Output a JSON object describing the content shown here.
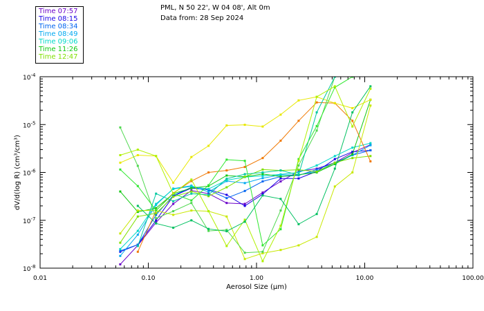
{
  "header": {
    "line1": "PML, N 50 22', W 04 08', Alt 0m",
    "line2": "Data from: 28 Sep 2024"
  },
  "legend": [
    {
      "label": "Time 07:57",
      "color": "#6a00c8"
    },
    {
      "label": "Time 08:15",
      "color": "#1a00e6"
    },
    {
      "label": "Time 08:34",
      "color": "#0064f0"
    },
    {
      "label": "Time 08:49",
      "color": "#00a8f0"
    },
    {
      "label": "Time 09:06",
      "color": "#00d8c8"
    },
    {
      "label": "Time 11:26",
      "color": "#10c810"
    },
    {
      "label": "Time 12:47",
      "color": "#80e000"
    }
  ],
  "chart_data": {
    "type": "line",
    "xscale": "log",
    "yscale": "log",
    "xlim": [
      0.01,
      100
    ],
    "ylim": [
      1e-08,
      0.0001
    ],
    "xlabel": "Aerosol Size (µm)",
    "ylabel": "dV/d(log R) (cm³/cm³)",
    "xticks": [
      {
        "value": 0.01,
        "label": "0.01"
      },
      {
        "value": 0.1,
        "label": "0.10"
      },
      {
        "value": 1,
        "label": "1.00"
      },
      {
        "value": 10,
        "label": "10.00"
      },
      {
        "value": 100,
        "label": "100.00"
      }
    ],
    "yticks": [
      {
        "value": 1e-08,
        "base": "10",
        "exp": "-8"
      },
      {
        "value": 1e-07,
        "base": "10",
        "exp": "-7"
      },
      {
        "value": 1e-06,
        "base": "10",
        "exp": "-6"
      },
      {
        "value": 1e-05,
        "base": "10",
        "exp": "-5"
      },
      {
        "value": 0.0001,
        "base": "10",
        "exp": "-4"
      }
    ],
    "x": [
      0.055,
      0.08,
      0.118,
      0.17,
      0.25,
      0.36,
      0.53,
      0.78,
      1.14,
      1.67,
      2.45,
      3.6,
      5.3,
      7.7,
      11.3
    ],
    "series": [
      {
        "name": "Time 07:57",
        "color": "#6a00c8",
        "values": [
          1.2e-08,
          3e-08,
          9e-08,
          2.2e-07,
          4.2e-07,
          3.6e-07,
          2.3e-07,
          2.2e-07,
          3.8e-07,
          6.5e-07,
          1.05e-06,
          1.2e-06,
          1.6e-06,
          2.6e-06,
          3.8e-06
        ]
      },
      {
        "name": "Time 08:15",
        "color": "#1a00e6",
        "values": [
          2.2e-08,
          3.1e-08,
          1e-07,
          3.2e-07,
          4.7e-07,
          4.4e-07,
          3.4e-07,
          2e-07,
          3.5e-07,
          7.5e-07,
          7.5e-07,
          1.05e-06,
          1.9e-06,
          2.7e-06,
          2.9e-06
        ]
      },
      {
        "name": "Time 08:34",
        "color": "#0064f0",
        "values": [
          2.3e-08,
          3.1e-08,
          1.3e-07,
          3.3e-07,
          4.9e-07,
          4.3e-07,
          2.9e-07,
          4.1e-07,
          6.5e-07,
          8.2e-07,
          8.7e-07,
          1.15e-06,
          1.6e-06,
          2.3e-06,
          2.9e-06
        ]
      },
      {
        "name": "Time 08:49",
        "color": "#00a8f0",
        "values": [
          1.8e-08,
          5e-08,
          2.1e-07,
          4.6e-07,
          5.3e-07,
          3.9e-07,
          6.6e-07,
          6e-07,
          7.6e-07,
          8.9e-07,
          8.8e-07,
          1.06e-06,
          1.5e-06,
          2.3e-06,
          3.7e-06
        ]
      },
      {
        "name": "Time 09:06",
        "color": "#00d8c8",
        "values": [
          2.5e-08,
          6e-08,
          2.2e-07,
          4.5e-07,
          5.1e-07,
          4.5e-07,
          6.9e-07,
          8e-07,
          8.5e-07,
          9.1e-07,
          1e-06,
          1.4e-06,
          2.2e-06,
          3.3e-06,
          4.1e-06
        ]
      },
      {
        "name": "Time 11:26",
        "color": "#10c810",
        "values": [
          4e-07,
          1.5e-07,
          1.8e-07,
          3.6e-07,
          4.7e-07,
          5.2e-07,
          8.6e-07,
          8.1e-07,
          9.3e-07,
          8.2e-07,
          9e-07,
          1e-06,
          1.5e-06,
          2.4e-06,
          3.3e-05
        ]
      },
      {
        "name": "Time 12:47",
        "color": "#80e000",
        "values": [
          3.4e-08,
          1.2e-07,
          1.4e-07,
          3.1e-07,
          4e-07,
          3.2e-07,
          4.9e-07,
          8.1e-07,
          1.15e-06,
          1.1e-06,
          1.14e-06,
          1.04e-06,
          1.6e-06,
          2e-06,
          2.2e-06
        ]
      },
      {
        "name": "",
        "color": "#f07800",
        "values": [
          null,
          2.2e-08,
          1.6e-07,
          3.7e-07,
          6.6e-07,
          1e-06,
          1.1e-06,
          1.3e-06,
          2e-06,
          4.6e-06,
          1.2e-05,
          2.9e-05,
          2.8e-05,
          1.2e-05,
          1.7e-06
        ]
      },
      {
        "name": "",
        "color": "#e8e800",
        "values": [
          1.6e-06,
          2.3e-06,
          2.2e-06,
          6.1e-07,
          2.1e-06,
          3.6e-06,
          9.6e-06,
          9.9e-06,
          9.1e-06,
          1.61e-05,
          3.2e-05,
          3.8e-05,
          2.8e-05,
          2.2e-05,
          3.3e-05
        ]
      },
      {
        "name": "",
        "color": "#c8e800",
        "values": [
          5.3e-08,
          1.6e-07,
          1.6e-07,
          1.3e-07,
          1.6e-07,
          1.55e-07,
          1.2e-07,
          1.55e-08,
          2.05e-08,
          2.4e-08,
          3e-08,
          4.5e-08,
          5.1e-07,
          1e-06,
          2.5e-05
        ]
      },
      {
        "name": "",
        "color": "#50d850",
        "values": [
          8.7e-06,
          1.37e-06,
          1.1e-07,
          1.55e-07,
          2.3e-07,
          6e-08,
          6.3e-08,
          2.1e-08,
          2.2e-08,
          1.6e-07,
          1.4e-06,
          7.5e-06,
          0.0001,
          0.0001,
          null
        ]
      },
      {
        "name": "",
        "color": "#00c8a0",
        "values": [
          null,
          2.9e-08,
          3.6e-07,
          2.5e-07,
          3.6e-07,
          3.4e-07,
          7.4e-07,
          9.2e-07,
          1e-06,
          1.1e-06,
          8.9e-07,
          1.8e-05,
          0.0001,
          null,
          null
        ]
      },
      {
        "name": "",
        "color": "#30e830",
        "values": [
          1.15e-06,
          5.2e-07,
          1.6e-07,
          3.6e-07,
          2.6e-07,
          5.4e-07,
          1.85e-06,
          1.75e-06,
          3e-08,
          6.5e-08,
          1.9e-06,
          9.3e-06,
          6e-05,
          0.0001,
          null
        ]
      },
      {
        "name": "",
        "color": "#b0f000",
        "values": [
          2.3e-06,
          3e-06,
          2.2e-06,
          3.6e-07,
          7.1e-07,
          1.55e-07,
          2.9e-08,
          1.03e-07,
          1.4e-08,
          7.7e-08,
          1.75e-06,
          3.8e-05,
          6.3e-05,
          9.1e-06,
          5.6e-05
        ]
      },
      {
        "name": "",
        "color": "#00c060",
        "values": [
          null,
          2e-07,
          8.6e-08,
          7e-08,
          1e-07,
          6.6e-08,
          5.9e-08,
          9.3e-08,
          3.3e-07,
          2.8e-07,
          8.3e-08,
          1.35e-07,
          1.2e-06,
          1.8e-05,
          6.3e-05
        ]
      }
    ]
  }
}
